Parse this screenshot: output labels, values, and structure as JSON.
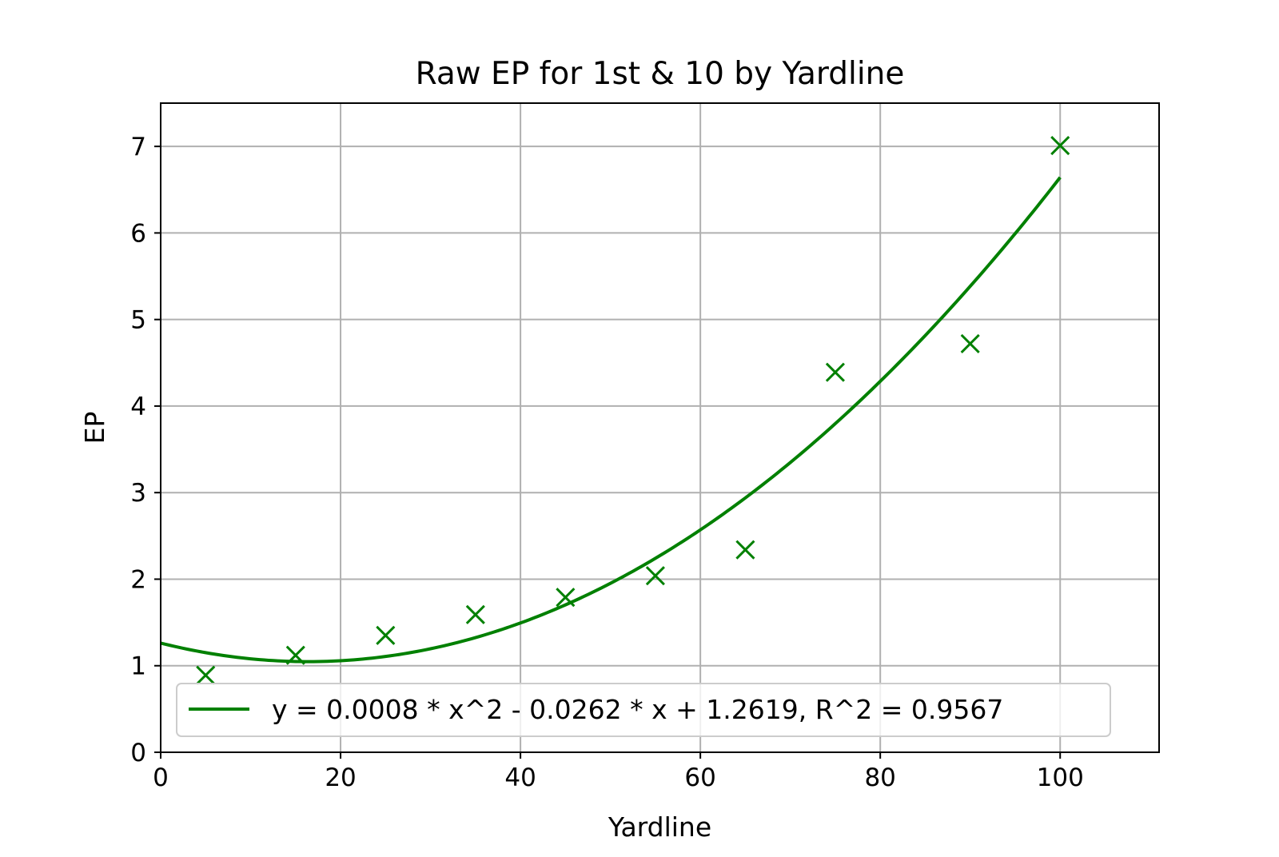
{
  "colors": {
    "series": "#008000",
    "grid": "#b0b0b0",
    "axes": "#000000",
    "legend_border": "#cccccc"
  },
  "chart_data": {
    "type": "scatter",
    "title": "Raw EP for 1st & 10 by Yardline",
    "xlabel": "Yardline",
    "ylabel": "EP",
    "xlim": [
      0,
      111
    ],
    "ylim": [
      0,
      7.5
    ],
    "xticks": [
      0,
      20,
      40,
      60,
      80,
      100
    ],
    "yticks": [
      0,
      1,
      2,
      3,
      4,
      5,
      6,
      7
    ],
    "grid": true,
    "legend_position": "lower center",
    "series": [
      {
        "kind": "scatter",
        "marker": "x",
        "x": [
          5,
          15,
          25,
          35,
          45,
          55,
          65,
          75,
          90,
          100
        ],
        "y": [
          0.89,
          1.12,
          1.35,
          1.59,
          1.79,
          2.04,
          2.34,
          4.39,
          4.72,
          7.01
        ]
      },
      {
        "kind": "line",
        "name": "y = 0.0008 * x^2 - 0.0262 * x + 1.2619, R^2 = 0.9567",
        "x_range": [
          0,
          100
        ],
        "coefficients": [
          0.0008,
          -0.0262,
          1.2619
        ]
      }
    ]
  }
}
